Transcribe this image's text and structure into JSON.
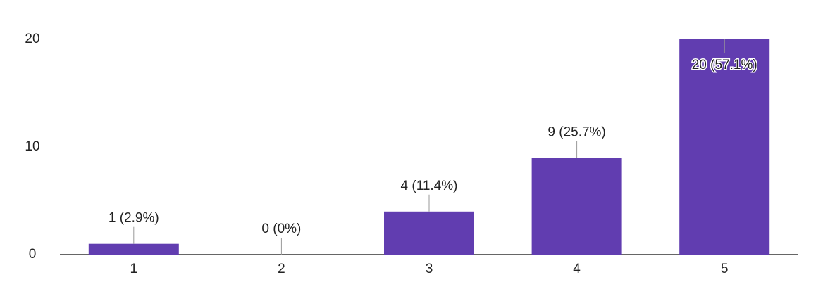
{
  "chart_data": {
    "type": "bar",
    "categories": [
      "1",
      "2",
      "3",
      "4",
      "5"
    ],
    "values": [
      1,
      0,
      4,
      9,
      20
    ],
    "value_labels": [
      "1 (2.9%)",
      "0 (0%)",
      "4 (11.4%)",
      "9 (25.7%)",
      "20 (57.1%)"
    ],
    "color": "#613db0",
    "ylim": [
      0,
      20
    ],
    "yticks": [
      0,
      10,
      20
    ],
    "grid": false
  }
}
